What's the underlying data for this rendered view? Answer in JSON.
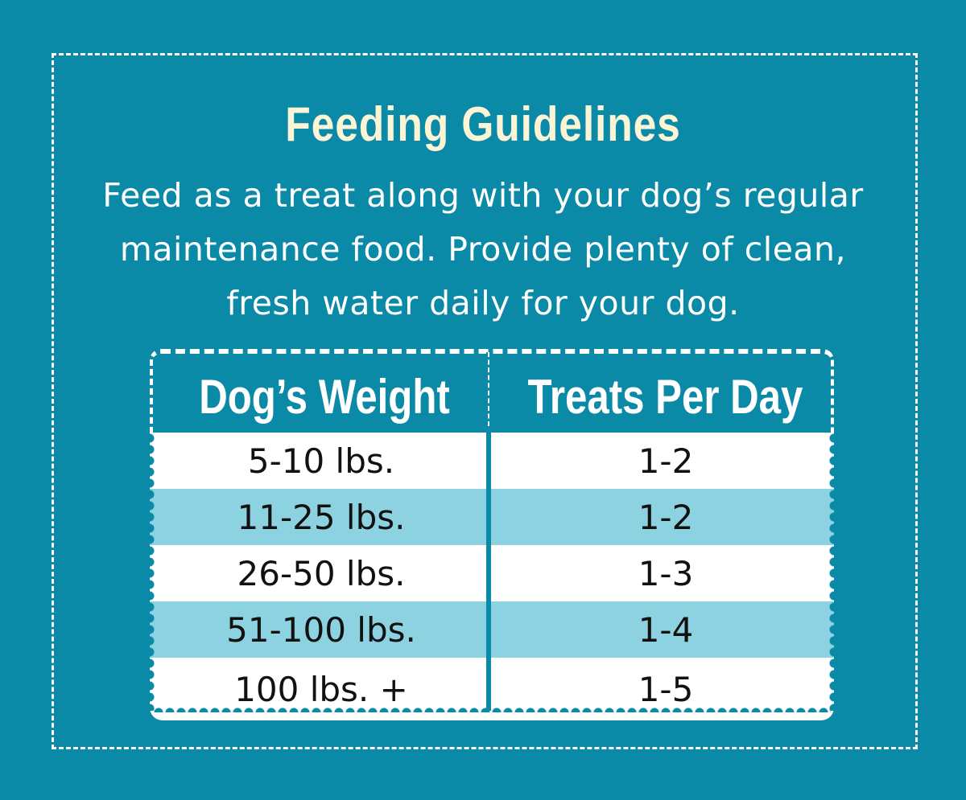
{
  "title": "Feeding Guidelines",
  "description": "Feed as a treat along with your dog’s regular maintenance food. Provide plenty of clean, fresh water daily for your dog.",
  "table": {
    "headers": {
      "weight": "Dog’s Weight",
      "treats": "Treats Per Day"
    },
    "rows": [
      {
        "weight": "5-10 lbs.",
        "treats": "1-2"
      },
      {
        "weight": "11-25 lbs.",
        "treats": "1-2"
      },
      {
        "weight": "26-50 lbs.",
        "treats": "1-3"
      },
      {
        "weight": "51-100 lbs.",
        "treats": "1-4"
      },
      {
        "weight": "100 lbs. +",
        "treats": "1-5"
      }
    ]
  },
  "colors": {
    "background": "#0b8aa8",
    "title": "#fbf5d6",
    "row_white": "#ffffff",
    "row_light": "#8dd2e0",
    "text_dark": "#111111"
  }
}
